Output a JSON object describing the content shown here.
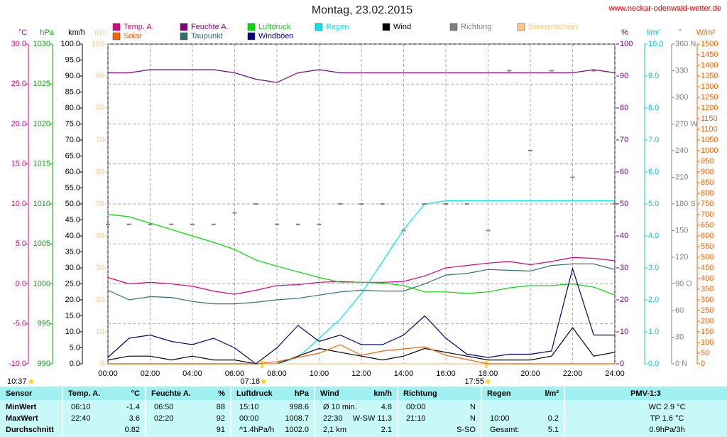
{
  "chart_data": {
    "type": "line",
    "title": "Montag, 23.02.2015",
    "source": "www.neckar-odenwald-wetter.de",
    "grid": true,
    "x": [
      0,
      1,
      2,
      3,
      4,
      5,
      6,
      7,
      8,
      9,
      10,
      11,
      12,
      13,
      14,
      15,
      16,
      17,
      18,
      19,
      20,
      21,
      22,
      23,
      24
    ],
    "xlim": [
      0,
      24
    ],
    "xticks": [
      {
        "value": 0,
        "label": "00:00"
      },
      {
        "value": 2,
        "label": "02:00"
      },
      {
        "value": 4,
        "label": "04:00"
      },
      {
        "value": 6,
        "label": "06:00"
      },
      {
        "value": 8,
        "label": "08:00"
      },
      {
        "value": 10,
        "label": "10:00"
      },
      {
        "value": 12,
        "label": "12:00"
      },
      {
        "value": 14,
        "label": "14:00"
      },
      {
        "value": 16,
        "label": "16:00"
      },
      {
        "value": 18,
        "label": "18:00"
      },
      {
        "value": 20,
        "label": "20:00"
      },
      {
        "value": 22,
        "label": "22:00"
      },
      {
        "value": 24,
        "label": "24:00"
      }
    ],
    "markers": [
      {
        "value": 7.3,
        "label": "07:18"
      },
      {
        "value": 17.917,
        "label": "17:55"
      }
    ],
    "moon": "10:37",
    "axes": [
      {
        "unit": "°C",
        "color": "#e0007f",
        "ylim": [
          -10,
          30
        ],
        "yticks": [
          {
            "value": 30,
            "label": "30.0"
          },
          {
            "value": 25,
            "label": "25.0"
          },
          {
            "value": 20,
            "label": "20.0"
          },
          {
            "value": 15,
            "label": "15.0"
          },
          {
            "value": 10,
            "label": "10.0"
          },
          {
            "value": 5,
            "label": "5.0"
          },
          {
            "value": 0,
            "label": "0.0"
          },
          {
            "value": -5,
            "label": "-5.0"
          },
          {
            "value": -10,
            "label": "-10.0"
          }
        ]
      },
      {
        "unit": "hPa",
        "color": "#00b000",
        "ylim": [
          990,
          1030
        ],
        "yticks": [
          1030,
          1025,
          1020,
          1015,
          1010,
          1005,
          1000,
          995,
          990
        ]
      },
      {
        "unit": "km/h",
        "color": "#000000",
        "ylim": [
          0,
          100
        ],
        "yticks": [
          {
            "value": 100,
            "label": "100.0"
          },
          {
            "value": 95,
            "label": "95.0"
          },
          {
            "value": 90,
            "label": "90.0"
          },
          {
            "value": 85,
            "label": "85.0"
          },
          {
            "value": 80,
            "label": "80.0"
          },
          {
            "value": 75,
            "label": "75.0"
          },
          {
            "value": 70,
            "label": "70.0"
          },
          {
            "value": 65,
            "label": "65.0"
          },
          {
            "value": 60,
            "label": "60.0"
          },
          {
            "value": 55,
            "label": "55.0"
          },
          {
            "value": 50,
            "label": "50.0"
          },
          {
            "value": 45,
            "label": "45.0"
          },
          {
            "value": 40,
            "label": "40.0"
          },
          {
            "value": 35,
            "label": "35.0"
          },
          {
            "value": 30,
            "label": "30.0"
          },
          {
            "value": 25,
            "label": "25.0"
          },
          {
            "value": 20,
            "label": "20.0"
          },
          {
            "value": 15,
            "label": "15.0"
          },
          {
            "value": 10,
            "label": "10.0"
          },
          {
            "value": 5,
            "label": "5.0"
          },
          {
            "value": 0,
            "label": "0.0"
          }
        ]
      },
      {
        "unit": "min",
        "color": "#ffc880",
        "ylim": [
          0,
          100
        ],
        "yticks": [
          100,
          90,
          80,
          70,
          60,
          50,
          40,
          30,
          20,
          10,
          0
        ]
      },
      {
        "unit": "%",
        "color": "#800080",
        "ylim": [
          0,
          100
        ],
        "yticks": [
          100,
          90,
          80,
          70,
          60,
          50,
          40,
          30,
          20,
          10,
          0
        ]
      },
      {
        "unit": "l/m²",
        "color": "#00c8d0",
        "ylim": [
          0,
          10
        ],
        "yticks": [
          {
            "value": 10,
            "label": "10.0"
          },
          {
            "value": 9,
            "label": "9.0"
          },
          {
            "value": 8,
            "label": "8.0"
          },
          {
            "value": 7,
            "label": "7.0"
          },
          {
            "value": 6,
            "label": "6.0"
          },
          {
            "value": 5,
            "label": "5.0"
          },
          {
            "value": 4,
            "label": "4.0"
          },
          {
            "value": 3,
            "label": "3.0"
          },
          {
            "value": 2,
            "label": "2.0"
          },
          {
            "value": 1,
            "label": "1.0"
          },
          {
            "value": 0,
            "label": "0.0"
          }
        ]
      },
      {
        "unit": "°",
        "color": "#808080",
        "ylim": [
          0,
          360
        ],
        "yticks": [
          {
            "value": 360,
            "label": "360 N"
          },
          330,
          300,
          {
            "value": 270,
            "label": "270 W"
          },
          240,
          210,
          {
            "value": 180,
            "label": "180 S"
          },
          150,
          120,
          {
            "value": 90,
            "label": "90 O"
          },
          60,
          30,
          {
            "value": 0,
            "label": "0 N"
          }
        ]
      },
      {
        "unit": "W/m²",
        "color": "#ff6000",
        "ylim": [
          0,
          1500
        ],
        "yticks": [
          1500,
          1450,
          1400,
          1350,
          1300,
          1250,
          1200,
          1150,
          1100,
          1050,
          1000,
          950,
          900,
          850,
          800,
          750,
          700,
          650,
          600,
          550,
          500,
          450,
          400,
          350,
          300,
          250,
          200,
          150,
          100,
          50,
          0
        ]
      }
    ],
    "series": [
      {
        "name": "Temp. A.",
        "color": "#e0007f",
        "axis": "°C",
        "values": [
          0.8,
          0.0,
          0.2,
          0.0,
          -0.3,
          -0.9,
          -1.3,
          -0.8,
          -0.2,
          -0.1,
          0.2,
          0.3,
          0.2,
          0.2,
          0.3,
          1.0,
          2.0,
          2.3,
          2.6,
          2.8,
          2.4,
          2.8,
          3.3,
          3.2,
          2.9
        ]
      },
      {
        "name": "Feuchte A.",
        "color": "#800080",
        "axis": "%",
        "values": [
          91,
          91,
          92,
          92,
          92,
          92,
          91,
          89,
          88,
          91,
          92,
          91,
          91,
          91,
          91,
          91,
          91,
          91,
          91,
          91,
          91,
          91,
          91,
          92,
          91
        ]
      },
      {
        "name": "Luftdruck",
        "color": "#00e000",
        "axis": "hPa",
        "values": [
          1008.7,
          1008.4,
          1007.6,
          1006.8,
          1006.0,
          1005.2,
          1004.3,
          1003.0,
          1002.2,
          1001.5,
          1000.8,
          1000.2,
          1000.2,
          1000.1,
          999.8,
          999.0,
          999.0,
          998.8,
          999.0,
          999.5,
          999.8,
          999.8,
          1000.0,
          999.6,
          998.6
        ]
      },
      {
        "name": "Regen",
        "color": "#00e8f0",
        "axis": "l/m²",
        "values": [
          0,
          0,
          0,
          0,
          0,
          0,
          0,
          0,
          0,
          0.2,
          0.8,
          1.4,
          2.2,
          3.2,
          4.2,
          5.0,
          5.1,
          5.1,
          5.1,
          5.1,
          5.1,
          5.1,
          5.1,
          5.1,
          5.1
        ]
      },
      {
        "name": "Wind",
        "color": "#000000",
        "axis": "km/h",
        "values": [
          1.2,
          2.4,
          2.4,
          1.2,
          2.4,
          1.2,
          1.2,
          0,
          0,
          2.4,
          4.8,
          3.6,
          2.4,
          1.2,
          2.4,
          4.8,
          3.6,
          2.4,
          1.2,
          1.2,
          1.2,
          2.4,
          11.3,
          2.4,
          3.6
        ]
      },
      {
        "name": "Richtung",
        "color": "#808080",
        "axis": "°",
        "kind": "scatter",
        "values": [
          157,
          157,
          157,
          157,
          157,
          157,
          170,
          180,
          157,
          157,
          157,
          180,
          180,
          180,
          150,
          180,
          180,
          180,
          150,
          330,
          240,
          330,
          210,
          330,
          180
        ]
      },
      {
        "name": "Sonnenschein",
        "color": "#ffc880",
        "axis": "min",
        "values": [
          0,
          0,
          0,
          0,
          0,
          0,
          0,
          0,
          0,
          0,
          0,
          0,
          0,
          0,
          0,
          0,
          0,
          0,
          0,
          0,
          0,
          0,
          0,
          0,
          0
        ]
      },
      {
        "name": "Solar",
        "color": "#ff6000",
        "axis": "W/m²",
        "values": [
          0,
          0,
          0,
          0,
          0,
          0,
          0,
          0,
          10,
          30,
          50,
          90,
          40,
          60,
          70,
          80,
          40,
          20,
          0,
          0,
          0,
          0,
          0,
          0,
          0
        ]
      },
      {
        "name": "Taupunkt",
        "color": "#307070",
        "axis": "°C",
        "values": [
          -0.8,
          -2.0,
          -1.6,
          -1.7,
          -2.2,
          -2.5,
          -2.5,
          -2.3,
          -2.0,
          -1.8,
          -1.4,
          -1.0,
          -0.8,
          -0.9,
          -0.9,
          0.0,
          1.1,
          1.3,
          1.8,
          1.7,
          1.6,
          2.3,
          2.5,
          2.5,
          1.8
        ]
      },
      {
        "name": "Windböen",
        "color": "#000080",
        "axis": "km/h",
        "values": [
          2,
          8,
          9,
          7,
          6,
          8,
          5,
          0,
          5,
          12,
          7,
          9,
          6,
          6,
          9,
          15,
          8,
          3,
          2,
          3,
          3,
          4,
          29.8,
          9,
          9
        ]
      }
    ]
  },
  "table": {
    "header": [
      [
        "Sensor"
      ],
      [
        "Temp. A.",
        "°C"
      ],
      [
        "Feuchte A.",
        "%"
      ],
      [
        "Luftdruck",
        "hPa"
      ],
      [
        "Wind",
        "km/h"
      ],
      [
        "Richtung"
      ],
      [
        "Regen",
        "l/m²"
      ],
      [
        "PMV-1:3"
      ]
    ],
    "rows": [
      {
        "label": "MinWert",
        "cells": [
          [
            "06:10",
            "-1.4"
          ],
          [
            "06:50",
            "88"
          ],
          [
            "15:10",
            "998.6"
          ],
          [
            "Ø 10 min.",
            "4.8"
          ],
          [
            "00:00",
            "N"
          ],
          [],
          [
            "WC 2.9 °C"
          ]
        ]
      },
      {
        "label": "MaxWert",
        "cells": [
          [
            "22:40",
            "3.6"
          ],
          [
            "02:20",
            "92"
          ],
          [
            "00:00",
            "1008.7"
          ],
          [
            "22:30",
            "W-SW 11.3"
          ],
          [
            "21:10",
            "N"
          ],
          [
            "10:00",
            "0.2"
          ],
          [
            "TP 1.6 °C"
          ]
        ]
      },
      {
        "label": "Durchschnitt",
        "cells": [
          [
            "0.82"
          ],
          [
            "91"
          ],
          [
            "^1.4hPa/h",
            "1002.0"
          ],
          [
            "2,1 km",
            "2.1"
          ],
          [
            "S-SO"
          ],
          [
            "Gesamt:",
            "5.1"
          ],
          [
            "0.9hPa/3h"
          ]
        ]
      }
    ]
  }
}
